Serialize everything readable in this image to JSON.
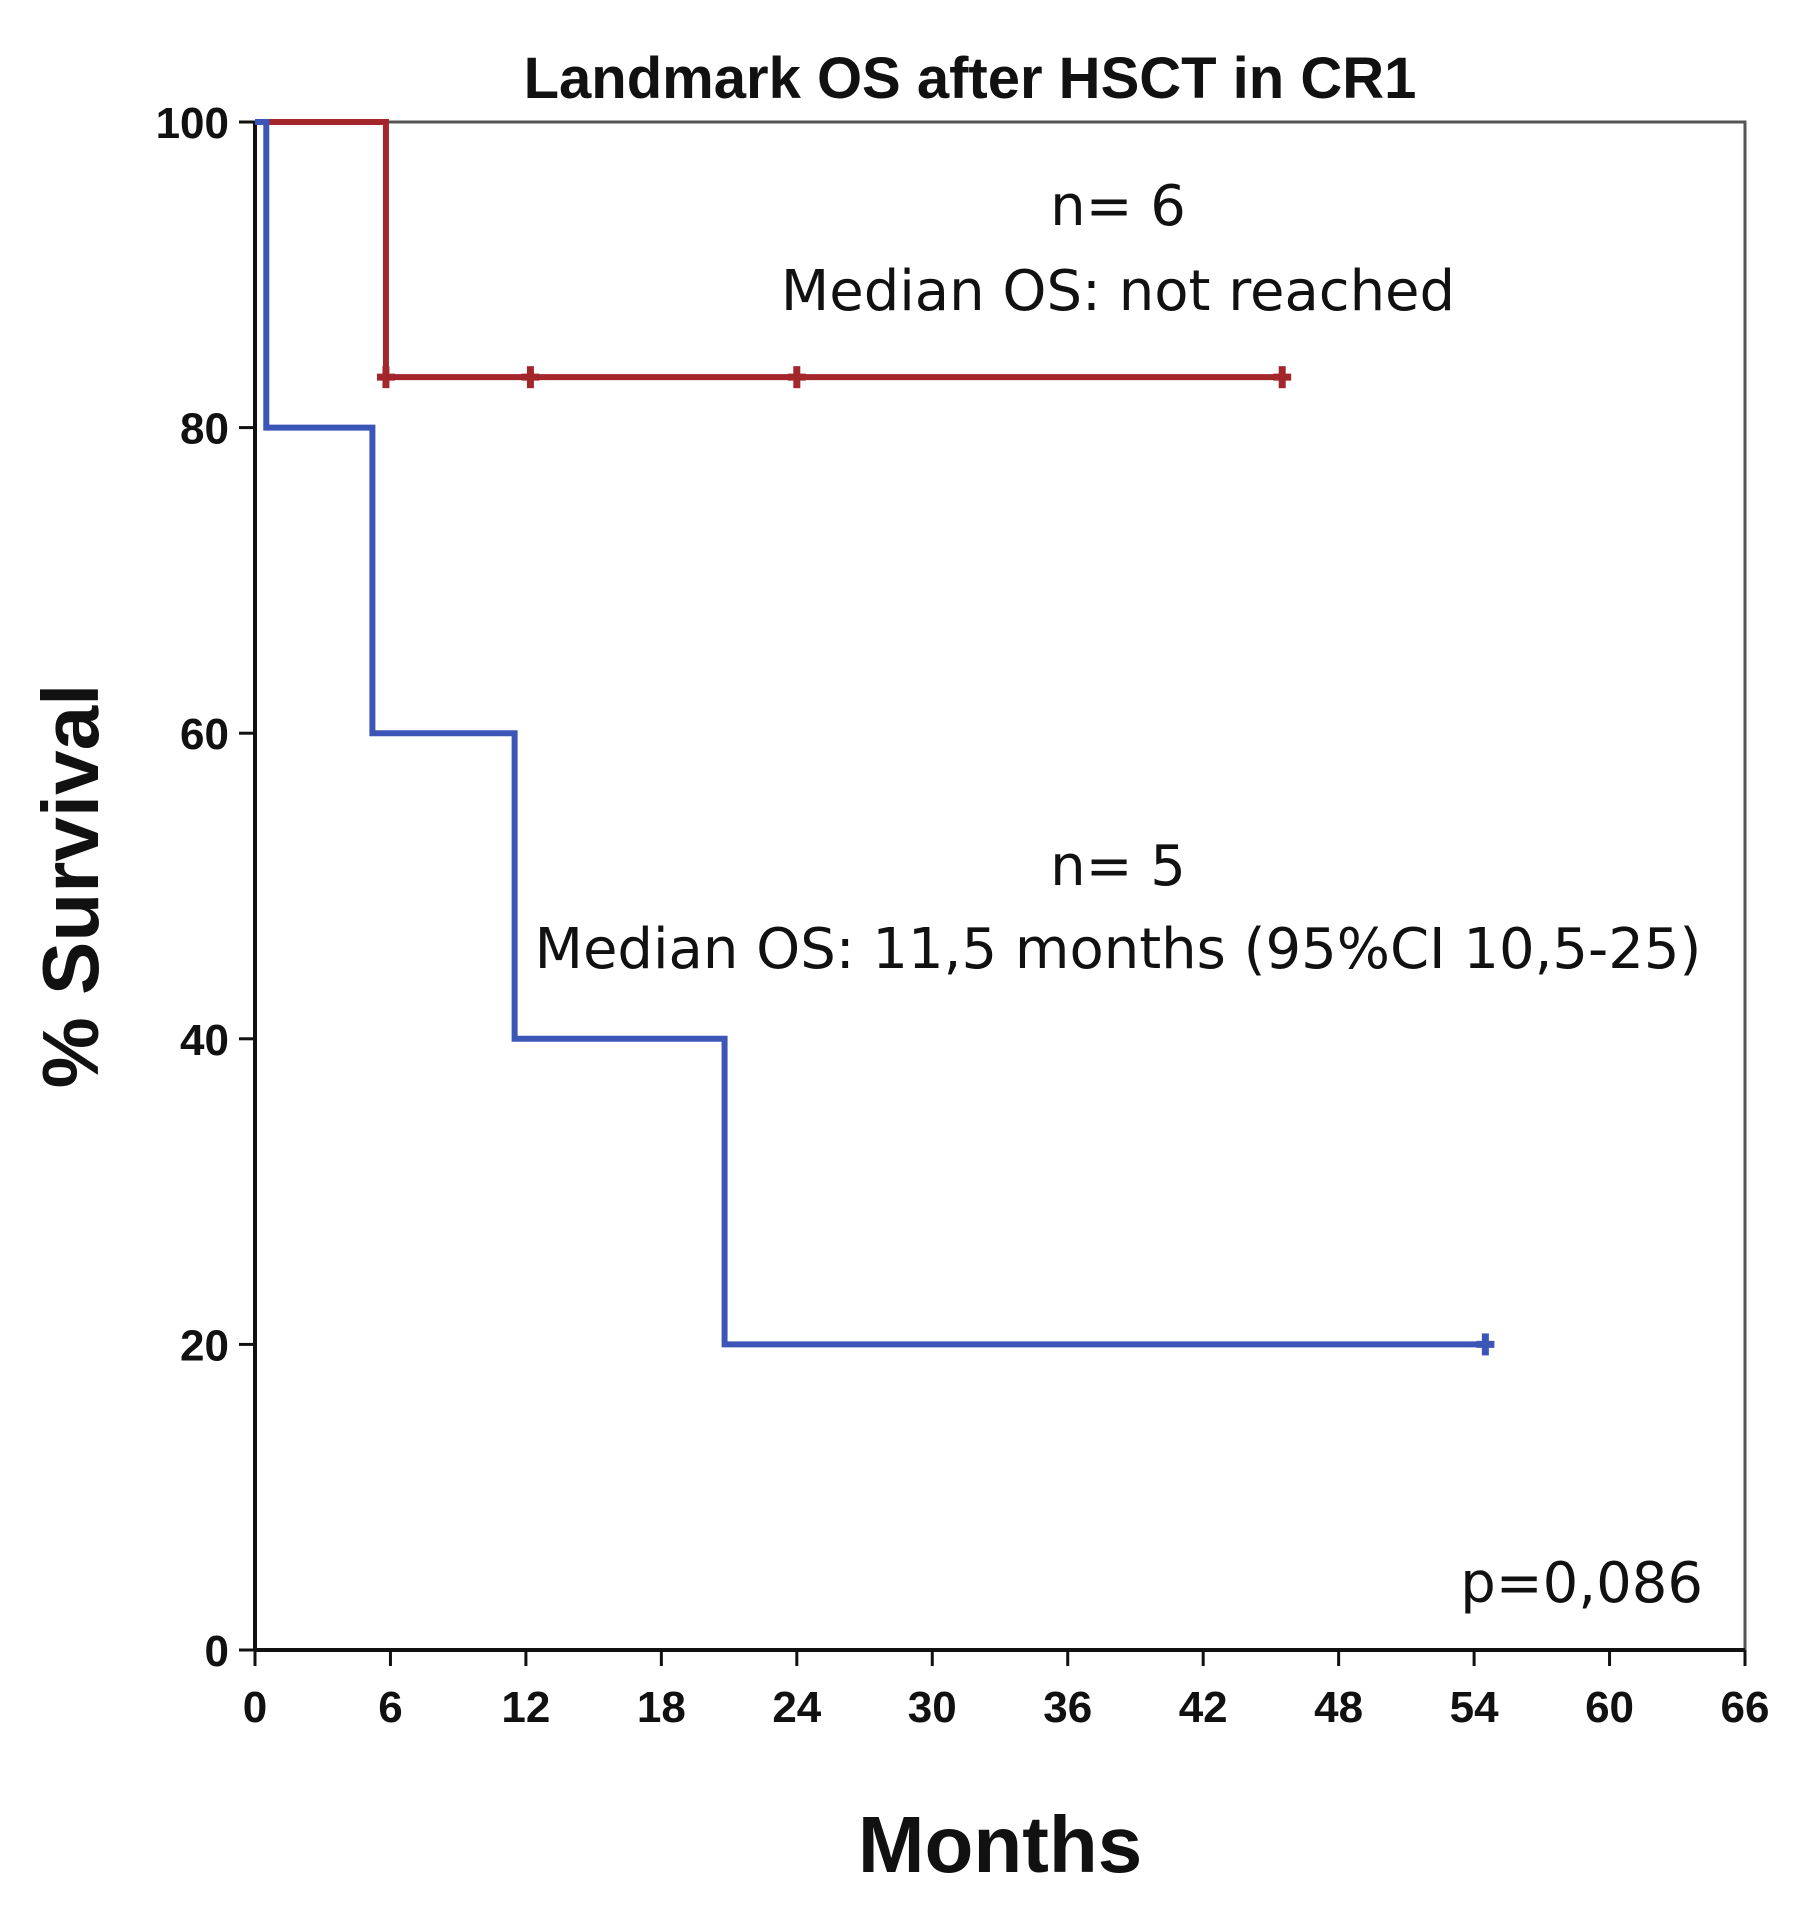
{
  "chart_data": {
    "type": "line",
    "subtype": "kaplan-meier step",
    "title": "Landmark OS after HSCT in CR1",
    "xlabel": "Months",
    "ylabel": "% Survival",
    "xlim": [
      0,
      66
    ],
    "ylim": [
      0,
      100
    ],
    "x_ticks": [
      0,
      6,
      12,
      18,
      24,
      30,
      36,
      42,
      48,
      54,
      60,
      66
    ],
    "y_ticks": [
      0,
      20,
      40,
      60,
      80,
      100
    ],
    "grid": false,
    "series": [
      {
        "name": "n= 6",
        "color": "#a3262a",
        "steps": [
          [
            0,
            100
          ],
          [
            5.8,
            100
          ],
          [
            5.8,
            83.3
          ],
          [
            45.5,
            83.3
          ]
        ],
        "censored": [
          [
            5.8,
            83.3
          ],
          [
            12.2,
            83.3
          ],
          [
            24,
            83.3
          ],
          [
            45.5,
            83.3
          ]
        ]
      },
      {
        "name": "n= 5",
        "color": "#3c56b8",
        "steps": [
          [
            0,
            100
          ],
          [
            0.5,
            100
          ],
          [
            0.5,
            80
          ],
          [
            5.2,
            80
          ],
          [
            5.2,
            60
          ],
          [
            11.5,
            60
          ],
          [
            11.5,
            40
          ],
          [
            20.8,
            40
          ],
          [
            20.8,
            20
          ],
          [
            54.5,
            20
          ]
        ],
        "censored": [
          [
            54.5,
            20
          ]
        ]
      }
    ],
    "annotations": {
      "group_top_n": "n= 6",
      "group_top_median": "Median OS: not reached",
      "group_bottom_n": "n= 5",
      "group_bottom_median": "Median OS: 11,5 months (95%CI 10,5-25)",
      "p_value": "p=0,086"
    }
  }
}
